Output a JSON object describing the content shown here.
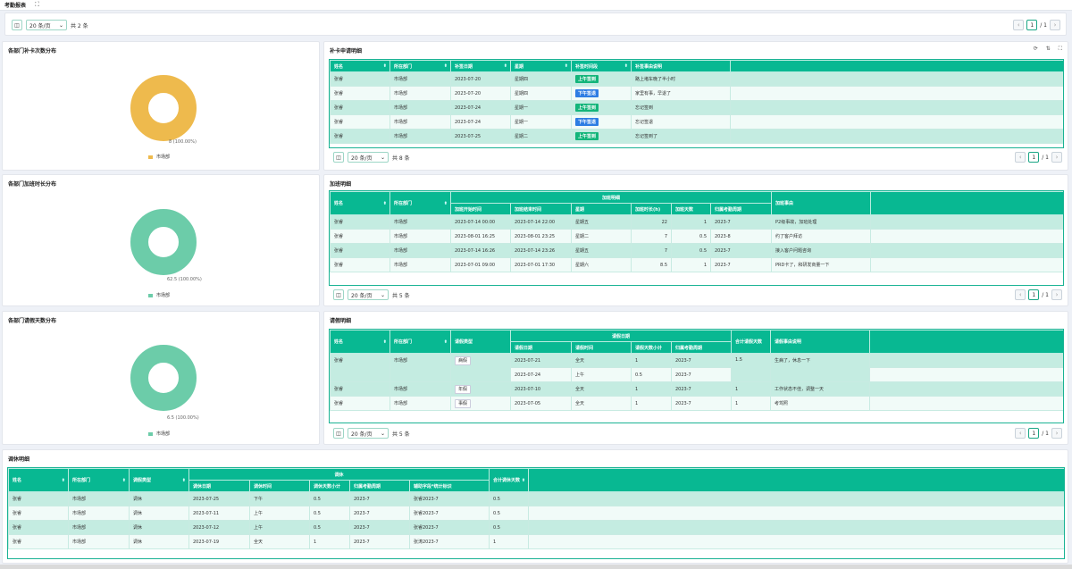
{
  "header": {
    "title": "考勤报表",
    "fullscreen_icon": "⛶"
  },
  "colors": {
    "accent": "#08b892",
    "donut_leave": "#eeba4d",
    "donut_green": "#6ccca9",
    "tag_am": "#13b57a",
    "tag_pm": "#2e7de3"
  },
  "top_pager": {
    "page_size": "20 条/页",
    "total": "共 2 条",
    "prev": "‹",
    "page": "1",
    "of": "/ 1",
    "next": "›"
  },
  "supp_chart": {
    "title": "各部门补卡次数分布",
    "label": "8 (100.00%)",
    "legend": "市场部",
    "chart_data": {
      "type": "pie",
      "categories": [
        "市场部"
      ],
      "values": [
        8
      ],
      "percent": [
        100
      ]
    }
  },
  "ot_chart": {
    "title": "各部门加班时长分布",
    "label": "62.5 (100.00%)",
    "legend": "市场部",
    "chart_data": {
      "type": "pie",
      "categories": [
        "市场部"
      ],
      "values": [
        62.5
      ],
      "percent": [
        100
      ]
    }
  },
  "leave_chart": {
    "title": "各部门请假天数分布",
    "label": "6.5 (100.00%)",
    "legend": "市场部",
    "chart_data": {
      "type": "pie",
      "categories": [
        "市场部"
      ],
      "values": [
        6.5
      ],
      "percent": [
        100
      ]
    }
  },
  "supp_table": {
    "title": "补卡申请明细",
    "headers": [
      "姓名",
      "所在部门",
      "补签日期",
      "星期",
      "补签时间段",
      "补签事由说明"
    ],
    "rows": [
      [
        "张睿",
        "市场部",
        "2023-07-20",
        "星期四",
        "上午签到",
        "路上堵车晚了半小时"
      ],
      [
        "张睿",
        "市场部",
        "2023-07-20",
        "星期四",
        "下午签退",
        "家里有事，早退了"
      ],
      [
        "张睿",
        "市场部",
        "2023-07-24",
        "星期一",
        "上午签到",
        "忘记签到"
      ],
      [
        "张睿",
        "市场部",
        "2023-07-24",
        "星期一",
        "下午签退",
        "忘记签退"
      ],
      [
        "张睿",
        "市场部",
        "2023-07-25",
        "星期二",
        "上午签到",
        "忘记签到了"
      ]
    ],
    "pager": {
      "page_size": "20 条/页",
      "total": "共 8 条",
      "prev": "‹",
      "page": "1",
      "of": "/ 1",
      "next": "›"
    }
  },
  "ot_table": {
    "title": "加班明细",
    "group_header": "加班明细",
    "headers": [
      "姓名",
      "所在部门",
      "加班开始时间",
      "加班结束时间",
      "星期",
      "加班时长(h)",
      "加班天数",
      "归属考勤周期",
      "加班事由"
    ],
    "rows": [
      [
        "张睿",
        "市场部",
        "2023-07-14 00:00",
        "2023-07-14 22:00",
        "星期五",
        "22",
        "1",
        "2023-7",
        "P2级事故，加班处理"
      ],
      [
        "张睿",
        "市场部",
        "2023-08-01 16:25",
        "2023-08-01 23:25",
        "星期二",
        "7",
        "0.5",
        "2023-8",
        "约了客户拜访"
      ],
      [
        "张睿",
        "市场部",
        "2023-07-14 16:26",
        "2023-07-14 23:26",
        "星期五",
        "7",
        "0.5",
        "2023-7",
        "接入客户问题咨询"
      ],
      [
        "张睿",
        "市场部",
        "2023-07-01 09:00",
        "2023-07-01 17:30",
        "星期六",
        "8.5",
        "1",
        "2023-7",
        "PRD卡了，和研发商量一下"
      ]
    ],
    "pager": {
      "page_size": "20 条/页",
      "total": "共 5 条",
      "prev": "‹",
      "page": "1",
      "of": "/ 1",
      "next": "›"
    }
  },
  "leave_table": {
    "title": "请假明细",
    "group_header": "请假日期",
    "headers": [
      "姓名",
      "所在部门",
      "请假类型",
      "请假日期",
      "请假时间",
      "请假天数小计",
      "归属考勤周期",
      "合计请假天数",
      "请假事由说明"
    ],
    "rows": [
      [
        "张睿",
        "市场部",
        "病假",
        "2023-07-21",
        "全天",
        "1",
        "2023-7",
        "1.5",
        "生病了，休息一下"
      ],
      [
        "",
        "",
        "",
        "2023-07-24",
        "上午",
        "0.5",
        "2023-7",
        "",
        ""
      ],
      [
        "张睿",
        "市场部",
        "年假",
        "2023-07-10",
        "全天",
        "1",
        "2023-7",
        "1",
        "工作状态不佳，调整一天"
      ],
      [
        "张睿",
        "市场部",
        "事假",
        "2023-07-05",
        "全天",
        "1",
        "2023-7",
        "1",
        "考驾照"
      ]
    ],
    "pager": {
      "page_size": "20 条/页",
      "total": "共 5 条",
      "prev": "‹",
      "page": "1",
      "of": "/ 1",
      "next": "›"
    }
  },
  "rest_table": {
    "title": "调休明细",
    "group_header": "调休",
    "headers": [
      "姓名",
      "所在部门",
      "调假类型",
      "调休日期",
      "调休时间",
      "调休天数小计",
      "归属考勤周期",
      "辅助字段*统计标识",
      "合计调休天数"
    ],
    "rows": [
      [
        "张睿",
        "市场部",
        "调休",
        "2023-07-25",
        "下午",
        "0.5",
        "2023-7",
        "张睿2023-7",
        "0.5"
      ],
      [
        "张睿",
        "市场部",
        "调休",
        "2023-07-11",
        "上午",
        "0.5",
        "2023-7",
        "张睿2023-7",
        "0.5"
      ],
      [
        "张睿",
        "市场部",
        "调休",
        "2023-07-12",
        "上午",
        "0.5",
        "2023-7",
        "张睿2023-7",
        "0.5"
      ],
      [
        "张睿",
        "市场部",
        "调休",
        "2023-07-19",
        "全天",
        "1",
        "2023-7",
        "张涛2023-7",
        "1"
      ]
    ]
  }
}
